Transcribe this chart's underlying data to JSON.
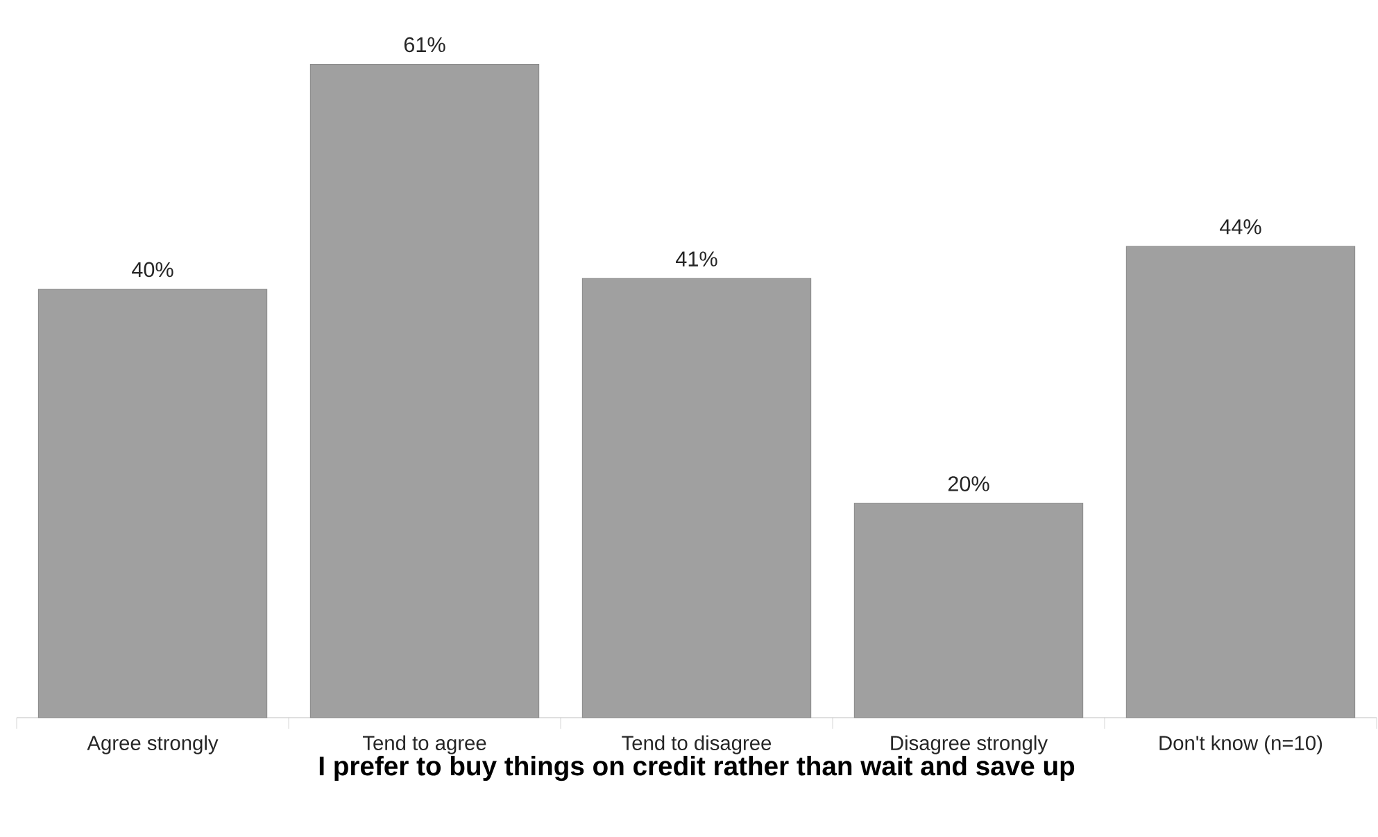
{
  "chart_data": {
    "type": "bar",
    "xlabel": "I prefer to buy things on credit rather than wait and save up",
    "categories": [
      "Agree strongly",
      "Tend to agree",
      "Tend to disagree",
      "Disagree strongly",
      "Don't know (n=10)"
    ],
    "values": [
      40,
      61,
      41,
      20,
      44
    ],
    "value_labels": [
      "40%",
      "61%",
      "41%",
      "20%",
      "44%"
    ],
    "color": "#a0a0a0"
  }
}
